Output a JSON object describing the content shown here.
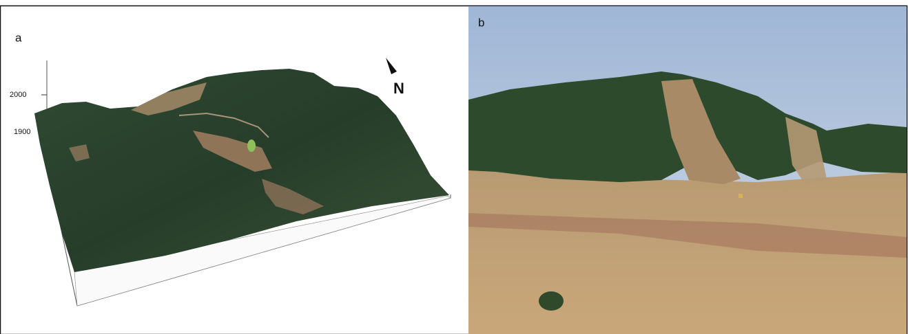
{
  "panels": [
    {
      "label": "a",
      "elevation_ticks": [
        2000,
        1900
      ],
      "north_label": "N"
    },
    {
      "label": "b"
    }
  ]
}
